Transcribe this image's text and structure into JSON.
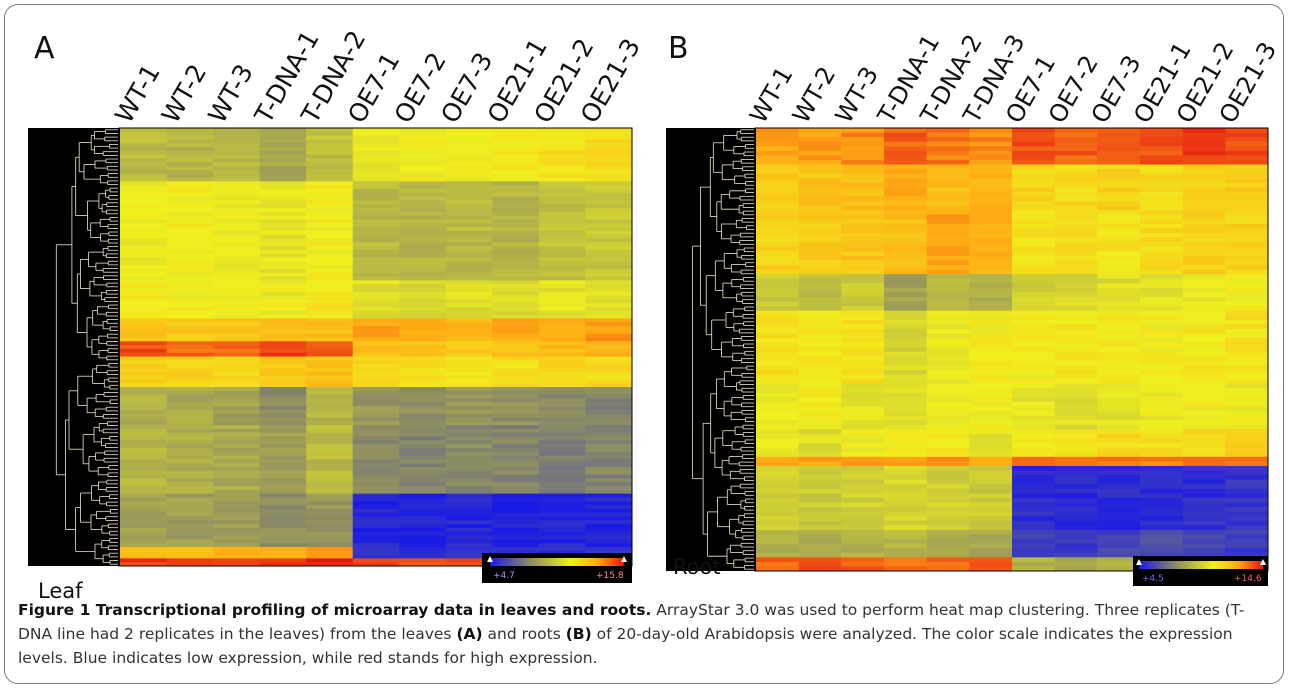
{
  "panels": [
    {
      "letter": "A",
      "tissue": "Leaf",
      "scale": {
        "min_label": "+4.7",
        "max_label": "+15.8"
      }
    },
    {
      "letter": "B",
      "tissue": "Root",
      "scale": {
        "min_label": "+4.5",
        "max_label": "+14.6"
      }
    }
  ],
  "caption": {
    "title": "Figure 1 Transcriptional profiling of microarray data in leaves and roots.",
    "s1": " ArrayStar 3.0 was used to perform heat map clustering. Three replicates (T-DNA line had 2 replicates in the leaves) from the leaves ",
    "ref_a": "(A)",
    "s2": " and roots ",
    "ref_b": "(B)",
    "s3": " of 20-day-old Arabidopsis were analyzed. The color scale indicates the expression levels. Blue indicates low expression, while red stands for high expression."
  },
  "colors": {
    "low": "#1a1ae6",
    "mid_low": "#8c8c64",
    "mid": "#f0f01e",
    "high_mid": "#ffaa14",
    "high": "#e61414",
    "dendrogram_bg": "#000000"
  },
  "chart_data": [
    {
      "type": "heatmap",
      "panel": "A",
      "title": "",
      "columns": [
        "WT-1",
        "WT-2",
        "WT-3",
        "T-DNA-1",
        "T-DNA-2",
        "OE7-1",
        "OE7-2",
        "OE7-3",
        "OE21-1",
        "OE21-2",
        "OE21-3"
      ],
      "value_range": [
        4.7,
        15.8
      ],
      "row_blocks_top_to_bottom": [
        {
          "rows": 14,
          "values": [
            9.6,
            9.4,
            9.6,
            9.0,
            9.8,
            11.2,
            11.4,
            11.3,
            11.6,
            11.8,
            12.0
          ]
        },
        {
          "rows": 26,
          "values": [
            11.2,
            11.4,
            11.2,
            11.0,
            11.4,
            9.6,
            9.4,
            9.6,
            9.4,
            9.8,
            10.0
          ]
        },
        {
          "rows": 10,
          "values": [
            11.6,
            11.5,
            11.4,
            11.2,
            11.8,
            10.8,
            10.6,
            10.8,
            10.6,
            10.9,
            11.0
          ]
        },
        {
          "rows": 6,
          "values": [
            12.8,
            12.6,
            12.6,
            12.8,
            13.0,
            13.6,
            13.4,
            13.2,
            13.4,
            13.6,
            13.8
          ]
        },
        {
          "rows": 4,
          "values": [
            15.0,
            14.6,
            14.4,
            15.2,
            14.8,
            13.0,
            12.8,
            12.6,
            12.8,
            13.0,
            13.2
          ]
        },
        {
          "rows": 8,
          "values": [
            12.4,
            12.2,
            12.2,
            12.6,
            12.8,
            12.2,
            12.0,
            11.8,
            12.0,
            12.2,
            12.0
          ]
        },
        {
          "rows": 10,
          "values": [
            9.2,
            9.0,
            8.8,
            8.0,
            9.4,
            8.4,
            8.2,
            8.4,
            8.2,
            8.0,
            7.8
          ]
        },
        {
          "rows": 18,
          "values": [
            9.4,
            9.2,
            9.0,
            8.6,
            9.6,
            8.0,
            7.8,
            8.0,
            7.8,
            7.6,
            7.8
          ]
        },
        {
          "rows": 14,
          "values": [
            8.8,
            8.6,
            8.6,
            8.2,
            8.4,
            5.0,
            4.9,
            5.0,
            4.9,
            5.0,
            5.1
          ]
        },
        {
          "rows": 3,
          "values": [
            13.0,
            13.0,
            13.2,
            13.4,
            13.6,
            5.6,
            5.4,
            5.6,
            5.5,
            5.4,
            5.6
          ]
        },
        {
          "rows": 2,
          "values": [
            15.2,
            15.0,
            15.2,
            15.4,
            15.4,
            15.0,
            15.0,
            15.2,
            15.0,
            15.1,
            15.2
          ]
        }
      ]
    },
    {
      "type": "heatmap",
      "panel": "B",
      "title": "",
      "columns": [
        "WT-1",
        "WT-2",
        "WT-3",
        "T-DNA-1",
        "T-DNA-2",
        "T-DNA-3",
        "OE7-1",
        "OE7-2",
        "OE7-3",
        "OE21-1",
        "OE21-2",
        "OE21-3"
      ],
      "value_range": [
        4.5,
        14.6
      ],
      "row_blocks_top_to_bottom": [
        {
          "rows": 8,
          "values": [
            12.6,
            12.8,
            13.0,
            13.6,
            13.2,
            13.0,
            13.8,
            13.6,
            13.6,
            13.8,
            14.0,
            13.8
          ]
        },
        {
          "rows": 10,
          "values": [
            11.6,
            11.8,
            12.0,
            12.4,
            12.0,
            12.2,
            11.4,
            11.2,
            11.4,
            11.2,
            11.4,
            11.6
          ]
        },
        {
          "rows": 14,
          "values": [
            11.4,
            11.6,
            11.8,
            12.0,
            12.6,
            12.4,
            11.0,
            11.2,
            11.0,
            11.2,
            11.4,
            11.4
          ]
        },
        {
          "rows": 8,
          "values": [
            9.4,
            9.0,
            9.4,
            8.2,
            8.8,
            8.6,
            9.6,
            9.8,
            10.0,
            10.2,
            10.4,
            10.6
          ]
        },
        {
          "rows": 16,
          "values": [
            11.0,
            10.8,
            11.0,
            9.8,
            10.4,
            10.6,
            10.6,
            10.8,
            10.8,
            10.6,
            10.8,
            11.0
          ]
        },
        {
          "rows": 10,
          "values": [
            10.4,
            10.6,
            10.2,
            10.0,
            10.4,
            10.6,
            10.2,
            10.0,
            10.2,
            10.4,
            10.6,
            10.4
          ]
        },
        {
          "rows": 6,
          "values": [
            10.2,
            10.0,
            10.4,
            10.6,
            10.8,
            10.2,
            10.8,
            11.0,
            11.2,
            11.0,
            11.2,
            11.4
          ]
        },
        {
          "rows": 2,
          "values": [
            12.8,
            12.6,
            12.8,
            12.6,
            12.8,
            12.6,
            13.4,
            13.2,
            13.4,
            13.2,
            13.4,
            13.2
          ]
        },
        {
          "rows": 14,
          "values": [
            9.6,
            9.4,
            9.6,
            9.8,
            9.6,
            9.4,
            5.0,
            4.9,
            5.0,
            4.9,
            5.0,
            5.2
          ]
        },
        {
          "rows": 6,
          "values": [
            8.6,
            8.4,
            8.6,
            8.8,
            8.6,
            8.4,
            5.6,
            5.4,
            5.6,
            5.8,
            5.6,
            5.4
          ]
        },
        {
          "rows": 3,
          "values": [
            13.6,
            13.8,
            13.6,
            13.4,
            13.6,
            13.8,
            8.6,
            8.4,
            8.6,
            8.4,
            8.6,
            8.4
          ]
        }
      ]
    }
  ]
}
